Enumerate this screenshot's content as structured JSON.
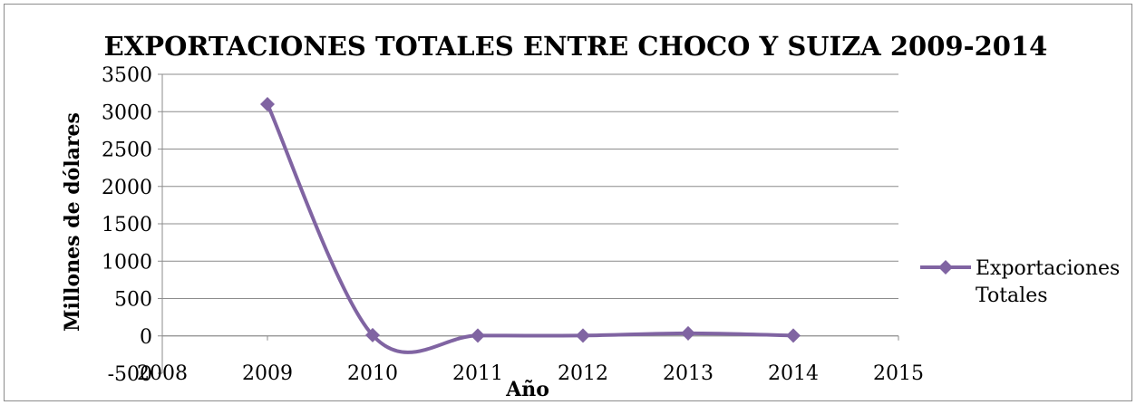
{
  "chart_data": {
    "type": "line",
    "title": "EXPORTACIONES TOTALES ENTRE CHOCO Y SUIZA 2009-2014",
    "xlabel": "Año",
    "ylabel": "Millones de dólares",
    "xlim": [
      2008,
      2015
    ],
    "ylim": [
      -500,
      3500
    ],
    "x_ticks": [
      2008,
      2009,
      2010,
      2011,
      2012,
      2013,
      2014,
      2015
    ],
    "y_ticks": [
      -500,
      0,
      500,
      1000,
      1500,
      2000,
      2500,
      3000,
      3500
    ],
    "grid": true,
    "legend_position": "right",
    "smooth": true,
    "series": [
      {
        "name": "Exportaciones Totales",
        "legend_lines": [
          "Exportaciones",
          "Totales"
        ],
        "color": "#8064a2",
        "marker": "diamond",
        "x": [
          2009,
          2010,
          2011,
          2012,
          2013,
          2014
        ],
        "y": [
          3100,
          10,
          5,
          5,
          35,
          5
        ]
      }
    ]
  }
}
